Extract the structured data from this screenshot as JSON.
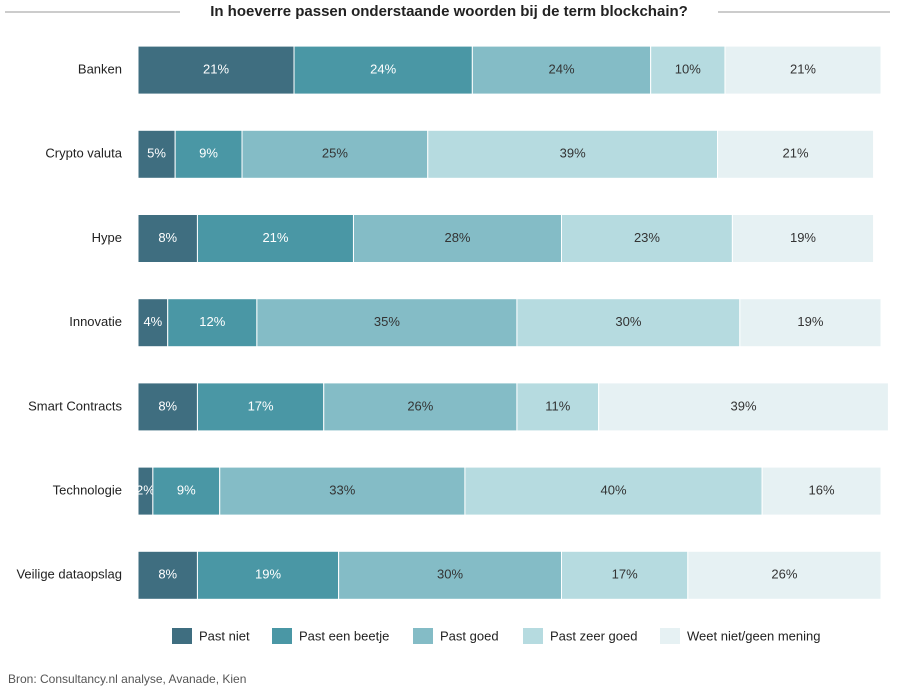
{
  "chart_data": {
    "type": "stacked-bar-horizontal",
    "title": "In hoeverre passen onderstaande woorden bij de term blockchain?",
    "source": "Bron: Consultancy.nl analyse, Avanade, Kien",
    "categories": [
      "Banken",
      "Crypto valuta",
      "Hype",
      "Innovatie",
      "Smart Contracts",
      "Technologie",
      "Veilige dataopslag"
    ],
    "xlim": [
      0,
      100
    ],
    "legend": "bottom",
    "series": [
      {
        "name": "Past niet",
        "color": "#3f6e80",
        "values": [
          21,
          5,
          8,
          4,
          8,
          2,
          8
        ],
        "value_labels": [
          "21%",
          "5%",
          "8%",
          "4%",
          "8%",
          "2%",
          "8%"
        ]
      },
      {
        "name": "Past een beetje",
        "color": "#4a97a5",
        "values": [
          24,
          9,
          21,
          12,
          17,
          9,
          19
        ],
        "value_labels": [
          "24%",
          "9%",
          "21%",
          "12%",
          "17%",
          "9%",
          "19%"
        ]
      },
      {
        "name": "Past goed",
        "color": "#84bcc6",
        "values": [
          24,
          25,
          28,
          35,
          26,
          33,
          30
        ],
        "value_labels": [
          "24%",
          "25%",
          "28%",
          "35%",
          "26%",
          "33%",
          "30%"
        ]
      },
      {
        "name": "Past zeer goed",
        "color": "#b6dbe0",
        "values": [
          10,
          39,
          23,
          30,
          11,
          40,
          17
        ],
        "value_labels": [
          "10%",
          "39%",
          "23%",
          "30%",
          "11%",
          "40%",
          "17%"
        ]
      },
      {
        "name": "Weet niet/geen mening",
        "color": "#e6f1f3",
        "values": [
          21,
          21,
          19,
          19,
          39,
          16,
          26
        ],
        "value_labels": [
          "21%",
          "21%",
          "19%",
          "19%",
          "39%",
          "16%",
          "26%"
        ]
      }
    ]
  }
}
